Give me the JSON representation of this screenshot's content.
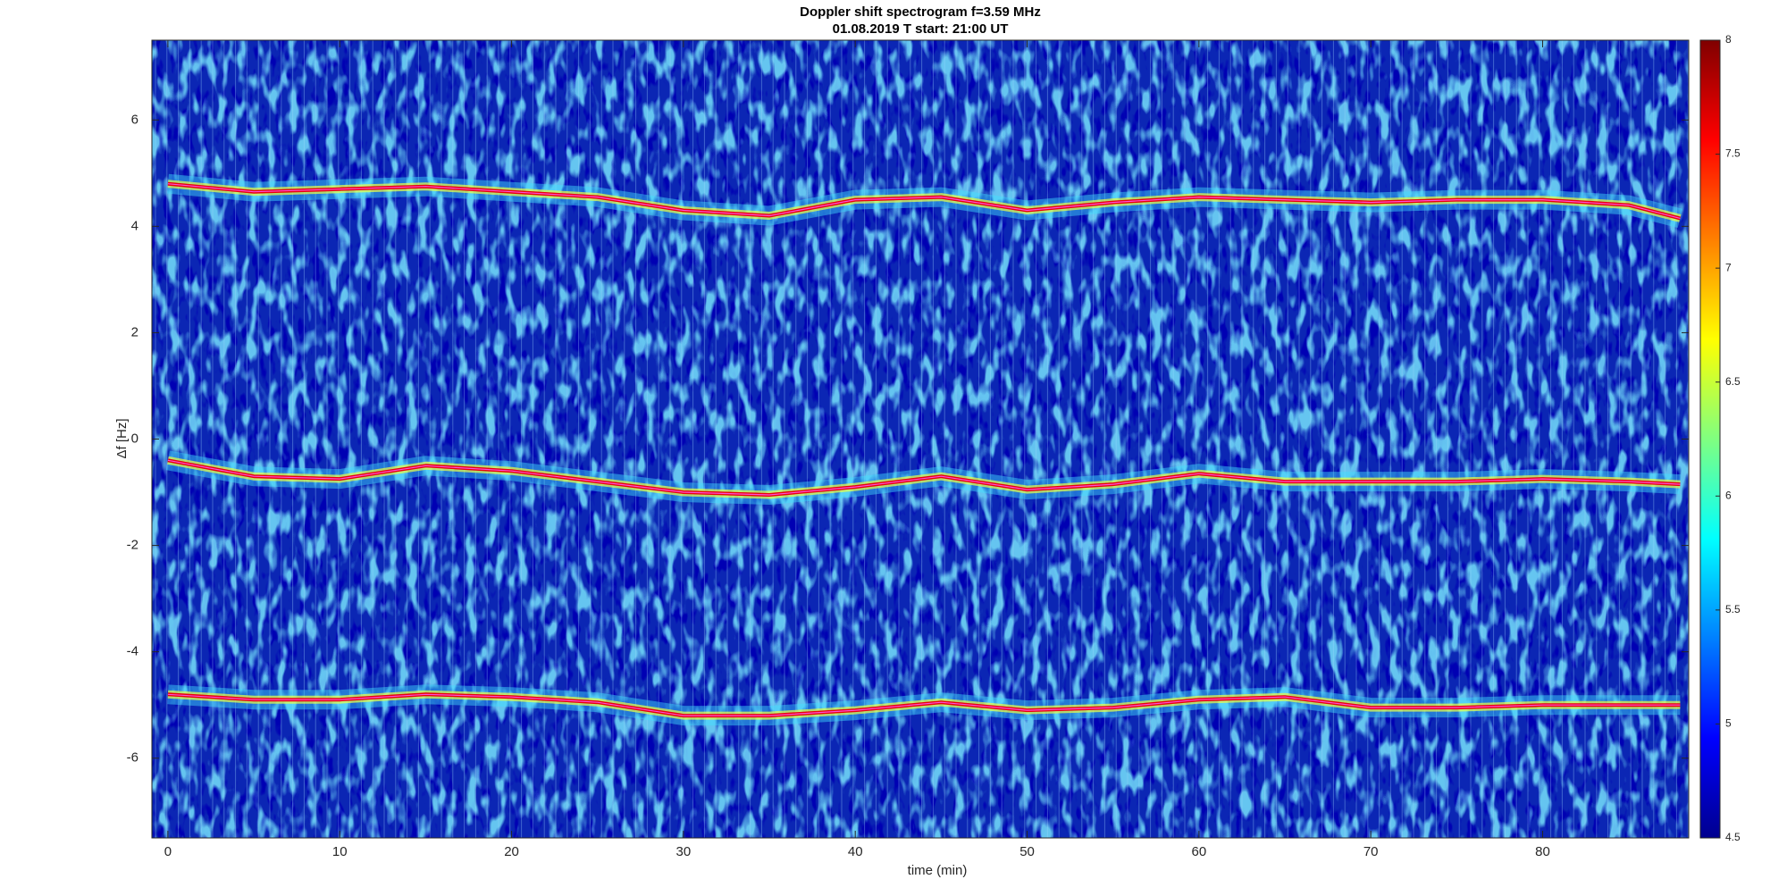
{
  "chart_data": {
    "type": "spectrogram",
    "title": "Doppler shift spectrogram f=3.59 MHz",
    "subtitle": "01.08.2019    T start: 21:00 UT",
    "x_label": "time (min)",
    "y_label": "Δf [Hz]",
    "xlim": [
      -0.93,
      88.5
    ],
    "ylim": [
      -7.5,
      7.5
    ],
    "xticks": [
      0,
      10,
      20,
      30,
      40,
      50,
      60,
      70,
      80
    ],
    "yticks": [
      -6,
      -4,
      -2,
      0,
      2,
      4,
      6
    ],
    "clim": [
      4.5,
      8
    ],
    "cticks": [
      4.5,
      5,
      5.5,
      6,
      6.5,
      7,
      7.5,
      8
    ],
    "colormap": [
      "#00008f",
      "#0000ff",
      "#0080ff",
      "#00ffff",
      "#80ff80",
      "#ffff00",
      "#ff8000",
      "#ff0000",
      "#800000"
    ],
    "background_color": "#0b26b4",
    "x": [
      0,
      5,
      10,
      15,
      20,
      25,
      30,
      35,
      40,
      45,
      50,
      55,
      60,
      65,
      70,
      75,
      80,
      85,
      88
    ],
    "series": [
      {
        "color": "#e8000b",
        "values": [
          4.8,
          4.65,
          4.7,
          4.75,
          4.65,
          4.55,
          4.3,
          4.2,
          4.5,
          4.55,
          4.3,
          4.45,
          4.55,
          4.5,
          4.45,
          4.5,
          4.5,
          4.4,
          4.15
        ]
      },
      {
        "color": "#e8000b",
        "values": [
          -0.4,
          -0.7,
          -0.75,
          -0.5,
          -0.6,
          -0.8,
          -1.0,
          -1.05,
          -0.9,
          -0.7,
          -0.95,
          -0.85,
          -0.65,
          -0.8,
          -0.8,
          -0.8,
          -0.75,
          -0.8,
          -0.85
        ]
      },
      {
        "color": "#e8000b",
        "values": [
          -4.8,
          -4.9,
          -4.9,
          -4.8,
          -4.85,
          -4.95,
          -5.2,
          -5.2,
          -5.1,
          -4.95,
          -5.1,
          -5.05,
          -4.9,
          -4.85,
          -5.05,
          -5.05,
          -5.0,
          -5.0,
          -5.0
        ]
      }
    ]
  }
}
